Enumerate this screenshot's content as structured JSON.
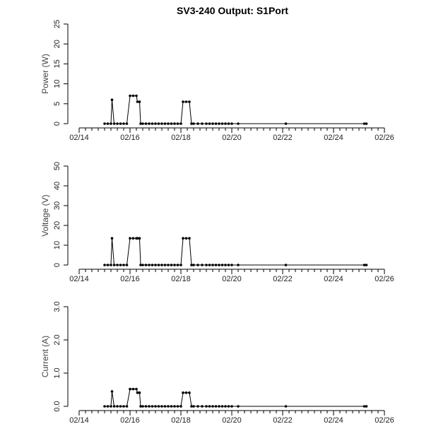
{
  "chart_data": {
    "type": "line",
    "title": "SV3-240 Output: S1Port",
    "x_axis": {
      "label": "",
      "range": [
        "02/14",
        "02/26"
      ],
      "tick_labels": [
        "02/14",
        "02/16",
        "02/18",
        "02/20",
        "02/22",
        "02/24",
        "02/26"
      ]
    },
    "x": [
      "02/15 00:00",
      "02/15 03:00",
      "02/15 06:00",
      "02/15 07:00",
      "02/15 09:00",
      "02/15 12:00",
      "02/15 15:00",
      "02/15 18:00",
      "02/15 21:00",
      "02/16 00:00",
      "02/16 03:00",
      "02/16 06:00",
      "02/16 07:00",
      "02/16 09:00",
      "02/16 10:00",
      "02/16 12:00",
      "02/16 15:00",
      "02/16 18:00",
      "02/16 21:00",
      "02/17 00:00",
      "02/17 03:00",
      "02/17 06:00",
      "02/17 09:00",
      "02/17 12:00",
      "02/17 15:00",
      "02/17 18:00",
      "02/17 21:00",
      "02/18 00:00",
      "02/18 02:00",
      "02/18 05:00",
      "02/18 08:00",
      "02/18 10:00",
      "02/18 12:00",
      "02/18 16:00",
      "02/18 20:00",
      "02/19 00:00",
      "02/19 03:00",
      "02/19 06:00",
      "02/19 09:00",
      "02/19 12:00",
      "02/19 15:00",
      "02/19 18:00",
      "02/19 21:00",
      "02/20 00:00",
      "02/20 06:00",
      "02/22 03:00",
      "02/25 05:00",
      "02/25 07:00"
    ],
    "panels": [
      {
        "ylabel": "Power (W)",
        "ylim": [
          0,
          25
        ],
        "yticks": [
          "0",
          "5",
          "10",
          "15",
          "20",
          "25"
        ],
        "ytick_values": [
          0,
          5,
          10,
          15,
          20,
          25
        ],
        "values": [
          0,
          0,
          0,
          6,
          0,
          0,
          0,
          0,
          0,
          7,
          7,
          7,
          5.5,
          5.5,
          0,
          0,
          0,
          0,
          0,
          0,
          0,
          0,
          0,
          0,
          0,
          0,
          0,
          0,
          5.5,
          5.5,
          5.5,
          0,
          0,
          0,
          0,
          0,
          0,
          0,
          0,
          0,
          0,
          0,
          0,
          0,
          0,
          0,
          0,
          0
        ]
      },
      {
        "ylabel": "Voltage (V)",
        "ylim": [
          0,
          50
        ],
        "yticks": [
          "0",
          "10",
          "20",
          "30",
          "40",
          "50"
        ],
        "ytick_values": [
          0,
          10,
          20,
          30,
          40,
          50
        ],
        "values": [
          0,
          0,
          0,
          13.5,
          0,
          0,
          0,
          0,
          0,
          13.5,
          13.5,
          13.5,
          13.5,
          13.5,
          0,
          0,
          0,
          0,
          0,
          0,
          0,
          0,
          0,
          0,
          0,
          0,
          0,
          0,
          13.5,
          13.5,
          13.5,
          0,
          0,
          0,
          0,
          0,
          0,
          0,
          0,
          0,
          0,
          0,
          0,
          0,
          0,
          0,
          0,
          0
        ]
      },
      {
        "ylabel": "Current (A)",
        "ylim": [
          0,
          3
        ],
        "yticks": [
          "0.0",
          "1.0",
          "2.0",
          "3.0"
        ],
        "ytick_values": [
          0,
          1,
          2,
          3
        ],
        "values": [
          0,
          0,
          0,
          0.45,
          0,
          0,
          0,
          0,
          0,
          0.52,
          0.52,
          0.52,
          0.41,
          0.41,
          0,
          0,
          0,
          0,
          0,
          0,
          0,
          0,
          0,
          0,
          0,
          0,
          0,
          0,
          0.41,
          0.41,
          0.41,
          0,
          0,
          0,
          0,
          0,
          0,
          0,
          0,
          0,
          0,
          0,
          0,
          0,
          0,
          0,
          0,
          0
        ]
      }
    ]
  }
}
